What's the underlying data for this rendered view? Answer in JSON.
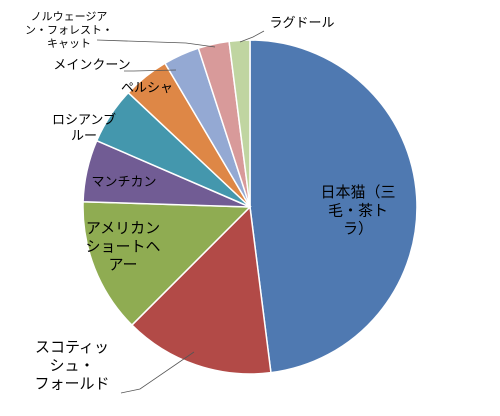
{
  "chart_data": {
    "type": "pie",
    "title": "",
    "start_angle_deg": 0,
    "direction": "clockwise",
    "slices": [
      {
        "label": "日本猫（三毛・茶トラ）",
        "label_lines": [
          "日本猫（三",
          "毛・茶ト",
          "ラ）"
        ],
        "value": 48.0,
        "color": "#4f79b1"
      },
      {
        "label": "スコティッシュ・フォールド",
        "label_lines": [
          "スコティッ",
          "シュ・",
          "フォールド"
        ],
        "value": 14.5,
        "color": "#b24a47"
      },
      {
        "label": "アメリカンショートヘアー",
        "label_lines": [
          "アメリカン",
          "ショートヘ",
          "アー"
        ],
        "value": 13.0,
        "color": "#8fac52"
      },
      {
        "label": "マンチカン",
        "label_lines": [
          "マンチカン"
        ],
        "value": 6.0,
        "color": "#715c94"
      },
      {
        "label": "ロシアンブルー",
        "label_lines": [
          "ロシアンブ",
          "ルー"
        ],
        "value": 5.5,
        "color": "#4497ad"
      },
      {
        "label": "ペルシャ",
        "label_lines": [
          "ペルシャ"
        ],
        "value": 4.5,
        "color": "#de8746"
      },
      {
        "label": "メインクーン",
        "label_lines": [
          "メインクーン"
        ],
        "value": 3.5,
        "color": "#94a9d3"
      },
      {
        "label": "ノルウェージアン・フォレスト・キャット",
        "label_lines": [
          "ノルウェージア",
          "ン・フォレスト・",
          "キャット"
        ],
        "value": 3.0,
        "color": "#d89a9a"
      },
      {
        "label": "ラグドール",
        "label_lines": [
          "ラグドール"
        ],
        "value": 2.0,
        "color": "#c0d5a1"
      }
    ]
  }
}
